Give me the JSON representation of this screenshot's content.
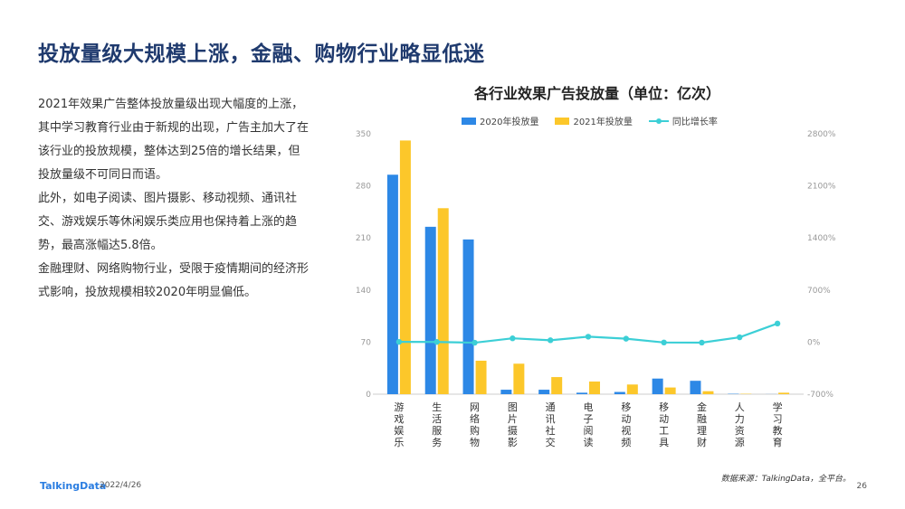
{
  "page": {
    "title": "投放量级大规模上涨，金融、购物行业略显低迷",
    "paragraphs": [
      "2021年效果广告整体投放量级出现大幅度的上涨，其中学习教育行业由于新规的出现，广告主加大了在该行业的投放规模，整体达到25倍的增长结果，但投放量级不可同日而语。",
      "此外，如电子阅读、图片摄影、移动视频、通讯社交、游戏娱乐等休闲娱乐类应用也保持着上涨的趋势，最高涨幅达5.8倍。",
      "金融理财、网络购物行业，受限于疫情期间的经济形式影响，投放规模相较2020年明显偏低。"
    ],
    "footer_logo": "TalkingData",
    "footer_date": "2022/4/26",
    "source": "数据来源：TalkingData，全平台。",
    "page_number": "26"
  },
  "chart_data": {
    "type": "bar",
    "title": "各行业效果广告投放量（单位：亿次）",
    "categories": [
      "游戏娱乐",
      "生活服务",
      "网络购物",
      "图片摄影",
      "通讯社交",
      "电子阅读",
      "移动视频",
      "移动工具",
      "金融理财",
      "人力资源",
      "学习教育"
    ],
    "series": [
      {
        "name": "2020年投放量",
        "kind": "bar",
        "axis": "left",
        "color": "#2d88e6",
        "values": [
          295,
          225,
          208,
          6,
          6,
          2,
          3,
          21,
          18,
          0.5,
          0.1
        ]
      },
      {
        "name": "2021年投放量",
        "kind": "bar",
        "axis": "left",
        "color": "#fcc72a",
        "values": [
          341,
          250,
          45,
          41,
          23,
          17,
          13,
          9,
          4,
          0.5,
          2
        ]
      },
      {
        "name": "同比增长率",
        "kind": "line",
        "axis": "right",
        "color": "#3ccfd6",
        "values": [
          0.03,
          0.02,
          -0.08,
          0.51,
          0.25,
          0.73,
          0.46,
          -0.05,
          -0.07,
          0.65,
          2.5
        ]
      }
    ],
    "left_axis": {
      "ylim": [
        0,
        350
      ],
      "ticks": [
        "0",
        "70",
        "140",
        "210",
        "280",
        "350"
      ]
    },
    "right_axis": {
      "ylim": [
        -7,
        28
      ],
      "ticks": [
        "-700%",
        "0%",
        "700%",
        "1400%",
        "2100%",
        "2800%"
      ]
    },
    "legend_position": "top",
    "grid": false
  }
}
